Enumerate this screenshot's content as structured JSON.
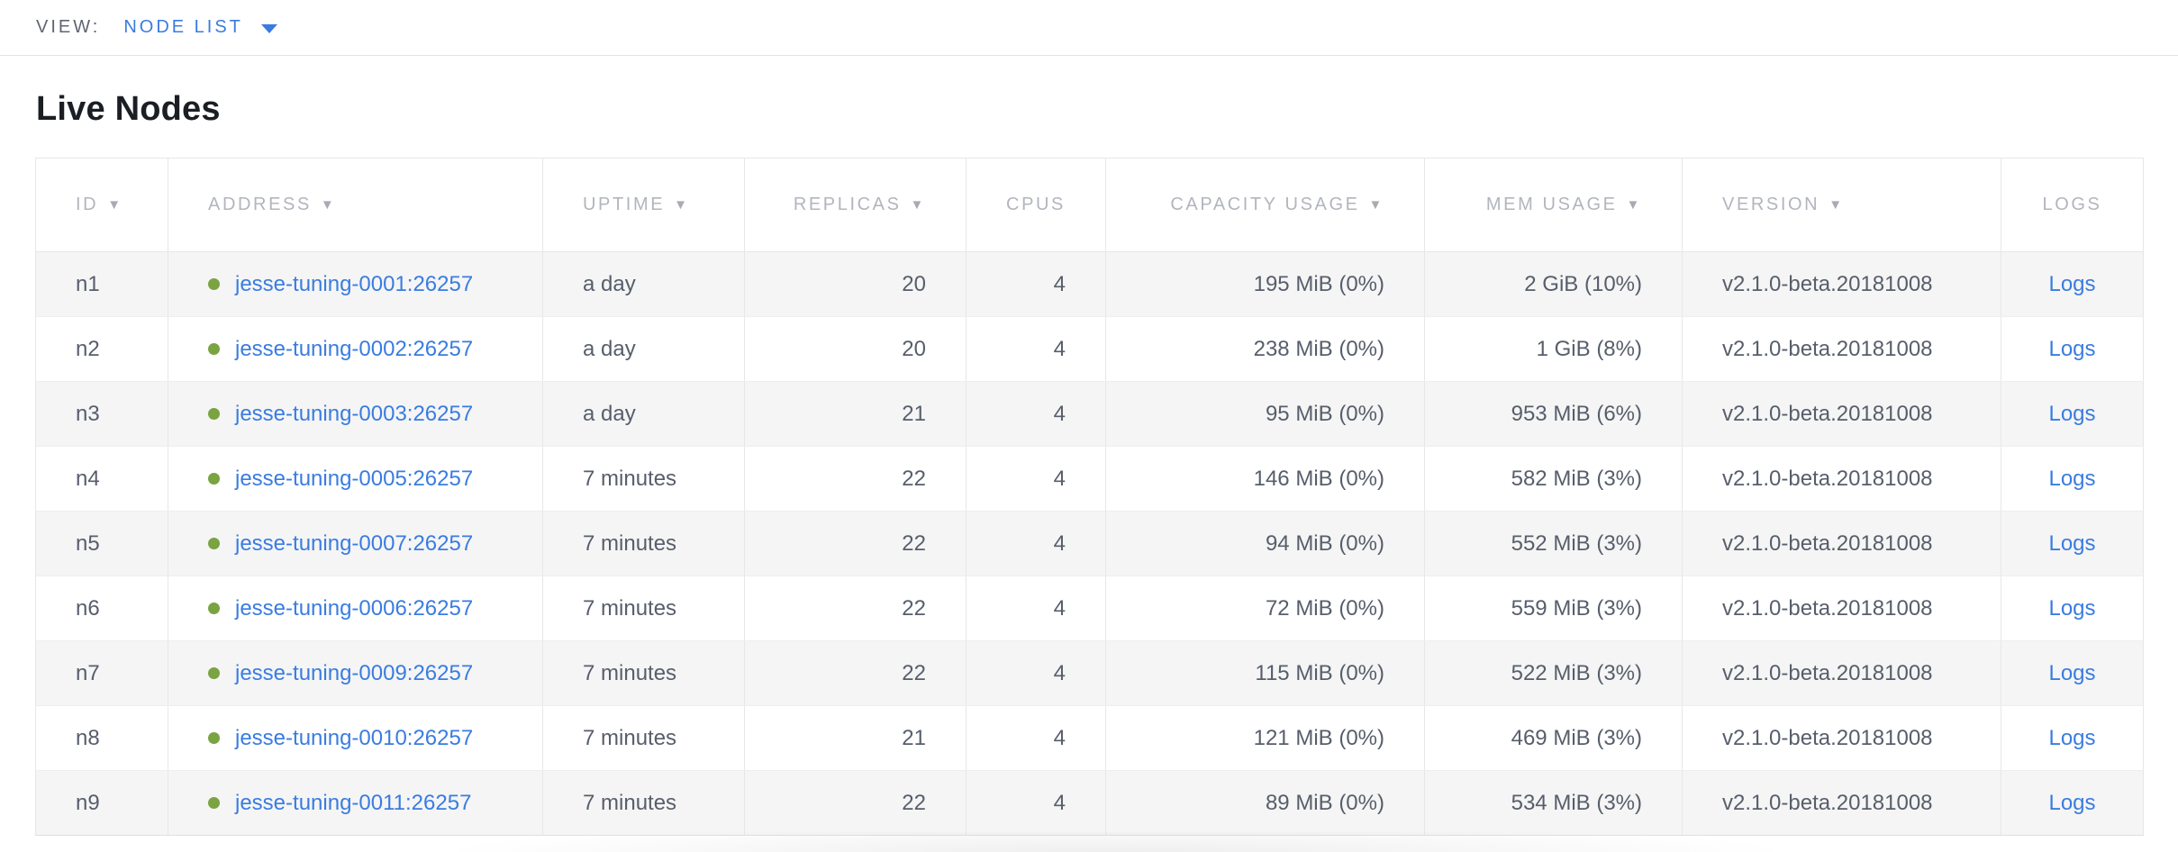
{
  "colors": {
    "accent_blue": "#3a7ce0",
    "live_green": "#7aa342"
  },
  "view_bar": {
    "label": "VIEW:",
    "selected": "NODE LIST"
  },
  "page": {
    "title": "Live Nodes"
  },
  "table": {
    "columns": [
      {
        "key": "id",
        "label": "ID",
        "sorted": true
      },
      {
        "key": "address",
        "label": "ADDRESS",
        "sorted": true
      },
      {
        "key": "uptime",
        "label": "UPTIME",
        "sorted": true
      },
      {
        "key": "replicas",
        "label": "REPLICAS",
        "sorted": true
      },
      {
        "key": "cpus",
        "label": "CPUS",
        "sorted": false
      },
      {
        "key": "capacity",
        "label": "CAPACITY USAGE",
        "sorted": true
      },
      {
        "key": "mem",
        "label": "MEM USAGE",
        "sorted": true
      },
      {
        "key": "version",
        "label": "VERSION",
        "sorted": true
      },
      {
        "key": "logs",
        "label": "LOGS",
        "sorted": false
      }
    ],
    "rows": [
      {
        "id": "n1",
        "status": "live",
        "address": "jesse-tuning-0001:26257",
        "uptime": "a day",
        "replicas": "20",
        "cpus": "4",
        "capacity": "195 MiB (0%)",
        "mem": "2 GiB (10%)",
        "version": "v2.1.0-beta.20181008",
        "logs": "Logs"
      },
      {
        "id": "n2",
        "status": "live",
        "address": "jesse-tuning-0002:26257",
        "uptime": "a day",
        "replicas": "20",
        "cpus": "4",
        "capacity": "238 MiB (0%)",
        "mem": "1 GiB (8%)",
        "version": "v2.1.0-beta.20181008",
        "logs": "Logs"
      },
      {
        "id": "n3",
        "status": "live",
        "address": "jesse-tuning-0003:26257",
        "uptime": "a day",
        "replicas": "21",
        "cpus": "4",
        "capacity": "95 MiB (0%)",
        "mem": "953 MiB (6%)",
        "version": "v2.1.0-beta.20181008",
        "logs": "Logs"
      },
      {
        "id": "n4",
        "status": "live",
        "address": "jesse-tuning-0005:26257",
        "uptime": "7 minutes",
        "replicas": "22",
        "cpus": "4",
        "capacity": "146 MiB (0%)",
        "mem": "582 MiB (3%)",
        "version": "v2.1.0-beta.20181008",
        "logs": "Logs"
      },
      {
        "id": "n5",
        "status": "live",
        "address": "jesse-tuning-0007:26257",
        "uptime": "7 minutes",
        "replicas": "22",
        "cpus": "4",
        "capacity": "94 MiB (0%)",
        "mem": "552 MiB (3%)",
        "version": "v2.1.0-beta.20181008",
        "logs": "Logs"
      },
      {
        "id": "n6",
        "status": "live",
        "address": "jesse-tuning-0006:26257",
        "uptime": "7 minutes",
        "replicas": "22",
        "cpus": "4",
        "capacity": "72 MiB (0%)",
        "mem": "559 MiB (3%)",
        "version": "v2.1.0-beta.20181008",
        "logs": "Logs"
      },
      {
        "id": "n7",
        "status": "live",
        "address": "jesse-tuning-0009:26257",
        "uptime": "7 minutes",
        "replicas": "22",
        "cpus": "4",
        "capacity": "115 MiB (0%)",
        "mem": "522 MiB (3%)",
        "version": "v2.1.0-beta.20181008",
        "logs": "Logs"
      },
      {
        "id": "n8",
        "status": "live",
        "address": "jesse-tuning-0010:26257",
        "uptime": "7 minutes",
        "replicas": "21",
        "cpus": "4",
        "capacity": "121 MiB (0%)",
        "mem": "469 MiB (3%)",
        "version": "v2.1.0-beta.20181008",
        "logs": "Logs"
      },
      {
        "id": "n9",
        "status": "live",
        "address": "jesse-tuning-0011:26257",
        "uptime": "7 minutes",
        "replicas": "22",
        "cpus": "4",
        "capacity": "89 MiB (0%)",
        "mem": "534 MiB (3%)",
        "version": "v2.1.0-beta.20181008",
        "logs": "Logs"
      }
    ],
    "sort_arrow_glyph": "▼"
  }
}
